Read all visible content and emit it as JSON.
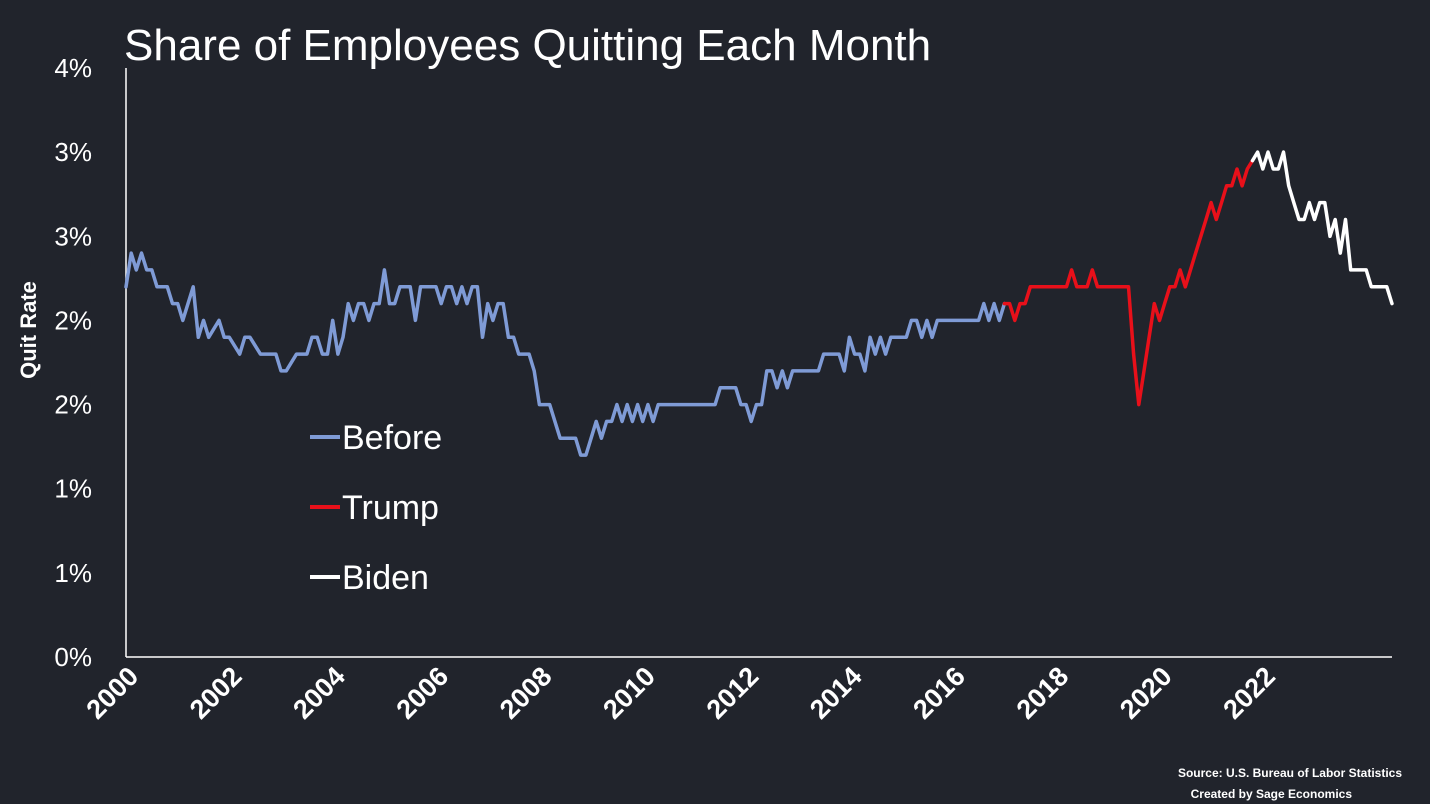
{
  "chart_data": {
    "type": "line",
    "title": "Share of Employees Quitting Each Month",
    "ylabel": "Quit Rate",
    "xlabel": "",
    "x_range": [
      2000,
      2023.67
    ],
    "ylim": [
      0,
      3.5
    ],
    "y_ticks": [
      0,
      0.5,
      1.0,
      1.5,
      2.0,
      2.5,
      3.0,
      3.5
    ],
    "y_tick_labels": [
      "0%",
      "1%",
      "1%",
      "2%",
      "2%",
      "3%",
      "3%",
      "4%"
    ],
    "x_ticks": [
      2000,
      2002,
      2004,
      2006,
      2008,
      2010,
      2012,
      2014,
      2016,
      2018,
      2020,
      2022
    ],
    "x_tick_labels": [
      "2000",
      "2002",
      "2004",
      "2006",
      "2008",
      "2010",
      "2012",
      "2014",
      "2016",
      "2018",
      "2020",
      "2022"
    ],
    "grid": false,
    "legend_position": "center-left",
    "series": [
      {
        "name": "Before",
        "color": "#7f9bd6",
        "points": [
          [
            2000.0,
            2.2
          ],
          [
            2000.1,
            2.4
          ],
          [
            2000.2,
            2.3
          ],
          [
            2000.3,
            2.4
          ],
          [
            2000.4,
            2.3
          ],
          [
            2000.5,
            2.3
          ],
          [
            2000.6,
            2.2
          ],
          [
            2000.8,
            2.2
          ],
          [
            2000.9,
            2.1
          ],
          [
            2001.0,
            2.1
          ],
          [
            2001.1,
            2.0
          ],
          [
            2001.3,
            2.2
          ],
          [
            2001.4,
            1.9
          ],
          [
            2001.5,
            2.0
          ],
          [
            2001.6,
            1.9
          ],
          [
            2001.8,
            2.0
          ],
          [
            2001.9,
            1.9
          ],
          [
            2002.0,
            1.9
          ],
          [
            2002.2,
            1.8
          ],
          [
            2002.3,
            1.9
          ],
          [
            2002.4,
            1.9
          ],
          [
            2002.6,
            1.8
          ],
          [
            2002.8,
            1.8
          ],
          [
            2002.9,
            1.8
          ],
          [
            2003.0,
            1.7
          ],
          [
            2003.1,
            1.7
          ],
          [
            2003.3,
            1.8
          ],
          [
            2003.4,
            1.8
          ],
          [
            2003.5,
            1.8
          ],
          [
            2003.6,
            1.9
          ],
          [
            2003.7,
            1.9
          ],
          [
            2003.8,
            1.8
          ],
          [
            2003.9,
            1.8
          ],
          [
            2004.0,
            2.0
          ],
          [
            2004.1,
            1.8
          ],
          [
            2004.2,
            1.9
          ],
          [
            2004.3,
            2.1
          ],
          [
            2004.4,
            2.0
          ],
          [
            2004.5,
            2.1
          ],
          [
            2004.6,
            2.1
          ],
          [
            2004.7,
            2.0
          ],
          [
            2004.8,
            2.1
          ],
          [
            2004.9,
            2.1
          ],
          [
            2005.0,
            2.3
          ],
          [
            2005.1,
            2.1
          ],
          [
            2005.2,
            2.1
          ],
          [
            2005.3,
            2.2
          ],
          [
            2005.4,
            2.2
          ],
          [
            2005.5,
            2.2
          ],
          [
            2005.6,
            2.0
          ],
          [
            2005.7,
            2.2
          ],
          [
            2005.8,
            2.2
          ],
          [
            2005.9,
            2.2
          ],
          [
            2006.0,
            2.2
          ],
          [
            2006.1,
            2.1
          ],
          [
            2006.2,
            2.2
          ],
          [
            2006.3,
            2.2
          ],
          [
            2006.4,
            2.1
          ],
          [
            2006.5,
            2.2
          ],
          [
            2006.6,
            2.1
          ],
          [
            2006.7,
            2.2
          ],
          [
            2006.8,
            2.2
          ],
          [
            2006.9,
            1.9
          ],
          [
            2007.0,
            2.1
          ],
          [
            2007.1,
            2.0
          ],
          [
            2007.2,
            2.1
          ],
          [
            2007.3,
            2.1
          ],
          [
            2007.4,
            1.9
          ],
          [
            2007.5,
            1.9
          ],
          [
            2007.6,
            1.8
          ],
          [
            2007.8,
            1.8
          ],
          [
            2007.9,
            1.7
          ],
          [
            2008.0,
            1.5
          ],
          [
            2008.2,
            1.5
          ],
          [
            2008.4,
            1.3
          ],
          [
            2008.5,
            1.3
          ],
          [
            2008.7,
            1.3
          ],
          [
            2008.8,
            1.2
          ],
          [
            2008.9,
            1.2
          ],
          [
            2009.0,
            1.3
          ],
          [
            2009.1,
            1.4
          ],
          [
            2009.2,
            1.3
          ],
          [
            2009.3,
            1.4
          ],
          [
            2009.4,
            1.4
          ],
          [
            2009.5,
            1.5
          ],
          [
            2009.6,
            1.4
          ],
          [
            2009.7,
            1.5
          ],
          [
            2009.8,
            1.4
          ],
          [
            2009.9,
            1.5
          ],
          [
            2010.0,
            1.4
          ],
          [
            2010.1,
            1.5
          ],
          [
            2010.2,
            1.4
          ],
          [
            2010.3,
            1.5
          ],
          [
            2010.4,
            1.5
          ],
          [
            2010.5,
            1.5
          ],
          [
            2010.7,
            1.5
          ],
          [
            2010.8,
            1.5
          ],
          [
            2011.0,
            1.5
          ],
          [
            2011.2,
            1.5
          ],
          [
            2011.4,
            1.5
          ],
          [
            2011.5,
            1.6
          ],
          [
            2011.6,
            1.6
          ],
          [
            2011.8,
            1.6
          ],
          [
            2011.9,
            1.5
          ],
          [
            2012.0,
            1.5
          ],
          [
            2012.1,
            1.4
          ],
          [
            2012.2,
            1.5
          ],
          [
            2012.3,
            1.5
          ],
          [
            2012.4,
            1.7
          ],
          [
            2012.5,
            1.7
          ],
          [
            2012.6,
            1.6
          ],
          [
            2012.7,
            1.7
          ],
          [
            2012.8,
            1.6
          ],
          [
            2012.9,
            1.7
          ],
          [
            2013.0,
            1.7
          ],
          [
            2013.1,
            1.7
          ],
          [
            2013.3,
            1.7
          ],
          [
            2013.4,
            1.7
          ],
          [
            2013.5,
            1.8
          ],
          [
            2013.6,
            1.8
          ],
          [
            2013.8,
            1.8
          ],
          [
            2013.9,
            1.7
          ],
          [
            2014.0,
            1.9
          ],
          [
            2014.1,
            1.8
          ],
          [
            2014.2,
            1.8
          ],
          [
            2014.3,
            1.7
          ],
          [
            2014.4,
            1.9
          ],
          [
            2014.5,
            1.8
          ],
          [
            2014.6,
            1.9
          ],
          [
            2014.7,
            1.8
          ],
          [
            2014.8,
            1.9
          ],
          [
            2014.9,
            1.9
          ],
          [
            2015.0,
            1.9
          ],
          [
            2015.1,
            1.9
          ],
          [
            2015.2,
            2.0
          ],
          [
            2015.3,
            2.0
          ],
          [
            2015.4,
            1.9
          ],
          [
            2015.5,
            2.0
          ],
          [
            2015.6,
            1.9
          ],
          [
            2015.7,
            2.0
          ],
          [
            2015.8,
            2.0
          ],
          [
            2015.9,
            2.0
          ],
          [
            2016.0,
            2.0
          ],
          [
            2016.1,
            2.0
          ],
          [
            2016.2,
            2.0
          ],
          [
            2016.3,
            2.0
          ],
          [
            2016.4,
            2.0
          ],
          [
            2016.5,
            2.0
          ],
          [
            2016.6,
            2.1
          ],
          [
            2016.7,
            2.0
          ],
          [
            2016.8,
            2.1
          ],
          [
            2016.9,
            2.0
          ],
          [
            2017.0,
            2.1
          ]
        ]
      },
      {
        "name": "Trump",
        "color": "#e8101a",
        "points": [
          [
            2017.0,
            2.1
          ],
          [
            2017.1,
            2.1
          ],
          [
            2017.2,
            2.0
          ],
          [
            2017.3,
            2.1
          ],
          [
            2017.4,
            2.1
          ],
          [
            2017.5,
            2.2
          ],
          [
            2017.7,
            2.2
          ],
          [
            2017.9,
            2.2
          ],
          [
            2018.0,
            2.2
          ],
          [
            2018.2,
            2.2
          ],
          [
            2018.3,
            2.3
          ],
          [
            2018.4,
            2.2
          ],
          [
            2018.6,
            2.2
          ],
          [
            2018.7,
            2.3
          ],
          [
            2018.8,
            2.2
          ],
          [
            2019.0,
            2.2
          ],
          [
            2019.2,
            2.2
          ],
          [
            2019.3,
            2.2
          ],
          [
            2019.4,
            2.2
          ],
          [
            2019.5,
            1.8
          ],
          [
            2019.6,
            1.5
          ],
          [
            2019.7,
            1.7
          ],
          [
            2019.8,
            1.9
          ],
          [
            2019.9,
            2.1
          ],
          [
            2020.0,
            2.0
          ],
          [
            2020.1,
            2.1
          ],
          [
            2020.2,
            2.2
          ],
          [
            2020.3,
            2.2
          ],
          [
            2020.4,
            2.3
          ],
          [
            2020.5,
            2.2
          ],
          [
            2020.6,
            2.3
          ],
          [
            2020.7,
            2.4
          ],
          [
            2020.8,
            2.5
          ],
          [
            2020.9,
            2.6
          ],
          [
            2021.0,
            2.7
          ],
          [
            2021.1,
            2.6
          ],
          [
            2021.2,
            2.7
          ],
          [
            2021.3,
            2.8
          ],
          [
            2021.4,
            2.8
          ],
          [
            2021.5,
            2.9
          ],
          [
            2021.6,
            2.8
          ],
          [
            2021.7,
            2.9
          ],
          [
            2021.8,
            2.95
          ]
        ]
      },
      {
        "name": "Biden",
        "color": "#ffffff",
        "points": [
          [
            2021.8,
            2.95
          ],
          [
            2021.9,
            3.0
          ],
          [
            2022.0,
            2.9
          ],
          [
            2022.1,
            3.0
          ],
          [
            2022.2,
            2.9
          ],
          [
            2022.3,
            2.9
          ],
          [
            2022.4,
            3.0
          ],
          [
            2022.5,
            2.8
          ],
          [
            2022.6,
            2.7
          ],
          [
            2022.7,
            2.6
          ],
          [
            2022.8,
            2.6
          ],
          [
            2022.9,
            2.7
          ],
          [
            2023.0,
            2.6
          ],
          [
            2023.1,
            2.7
          ],
          [
            2023.2,
            2.7
          ],
          [
            2023.3,
            2.5
          ],
          [
            2023.4,
            2.6
          ],
          [
            2023.5,
            2.4
          ],
          [
            2023.6,
            2.6
          ],
          [
            2023.7,
            2.3
          ],
          [
            2023.8,
            2.3
          ],
          [
            2023.9,
            2.3
          ],
          [
            2024.0,
            2.3
          ],
          [
            2024.1,
            2.2
          ],
          [
            2024.2,
            2.2
          ],
          [
            2024.4,
            2.2
          ],
          [
            2024.5,
            2.1
          ]
        ]
      }
    ]
  },
  "source": {
    "line1": "Source: U.S. Bureau of Labor Statistics",
    "line2": "Created by Sage Economics"
  }
}
